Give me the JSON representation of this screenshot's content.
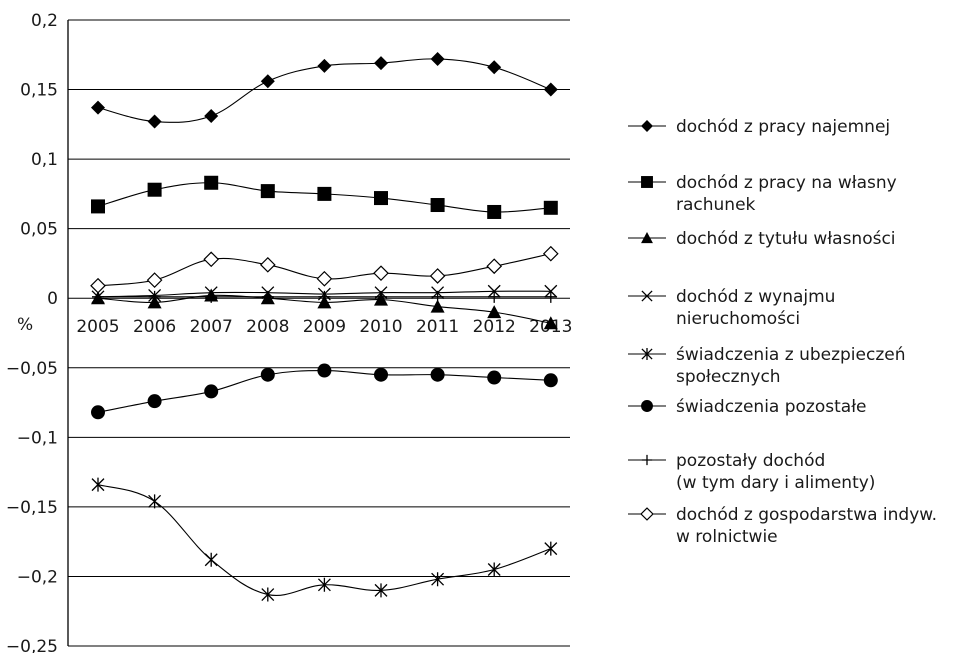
{
  "chart_data": {
    "type": "line",
    "ylabel": "%",
    "ylim": [
      -0.25,
      0.2
    ],
    "yticks": [
      "0,2",
      "0,15",
      "0,1",
      "0,05",
      "0",
      "−0,05",
      "−0,1",
      "−0,15",
      "−0,2",
      "−0,25"
    ],
    "ytick_values": [
      0.2,
      0.15,
      0.1,
      0.05,
      0,
      -0.05,
      -0.1,
      -0.15,
      -0.2,
      -0.25
    ],
    "categories": [
      "2005",
      "2006",
      "2007",
      "2008",
      "2009",
      "2010",
      "2011",
      "2012",
      "2013"
    ],
    "grid": "horizontal",
    "legend_position": "right",
    "series": [
      {
        "name": "dochód z pracy najemnej",
        "marker": "diamond-filled",
        "values": [
          0.137,
          0.127,
          0.131,
          0.156,
          0.167,
          0.169,
          0.172,
          0.166,
          0.15
        ]
      },
      {
        "name": "dochód z pracy na własny rachunek",
        "marker": "square-filled",
        "values": [
          0.066,
          0.078,
          0.083,
          0.077,
          0.075,
          0.072,
          0.067,
          0.062,
          0.065
        ]
      },
      {
        "name": "dochód z tytułu własności",
        "marker": "triangle-filled",
        "values": [
          0.0,
          -0.003,
          0.002,
          0.0,
          -0.003,
          -0.001,
          -0.006,
          -0.01,
          -0.018
        ]
      },
      {
        "name": "dochód z wynajmu nieruchomości",
        "marker": "x",
        "values": [
          0.001,
          0.002,
          0.004,
          0.004,
          0.003,
          0.004,
          0.004,
          0.005,
          0.005
        ]
      },
      {
        "name": "świadczenia z ubezpieczeń społecznych",
        "marker": "asterisk",
        "values": [
          -0.134,
          -0.146,
          -0.188,
          -0.213,
          -0.206,
          -0.21,
          -0.202,
          -0.195,
          -0.18
        ]
      },
      {
        "name": "świadczenia pozostałe",
        "marker": "circle-filled",
        "values": [
          -0.082,
          -0.074,
          -0.067,
          -0.055,
          -0.052,
          -0.055,
          -0.055,
          -0.057,
          -0.059
        ]
      },
      {
        "name": "pozostały dochód (w tym dary i alimenty)",
        "marker": "plus",
        "values": [
          0.001,
          0.001,
          0.001,
          0.001,
          0.001,
          0.001,
          0.001,
          0.001,
          0.001
        ]
      },
      {
        "name": "dochód z gospodarstwa indyw. w rolnictwie",
        "marker": "diamond-open",
        "values": [
          0.009,
          0.013,
          0.028,
          0.024,
          0.014,
          0.018,
          0.016,
          0.023,
          0.032
        ]
      }
    ],
    "legend_lines": [
      [
        "dochód z pracy najemnej"
      ],
      [
        "dochód z pracy na własny",
        "rachunek"
      ],
      [
        "dochód z tytułu własności"
      ],
      [
        "dochód z wynajmu",
        "nieruchomości"
      ],
      [
        "świadczenia z ubezpieczeń",
        "społecznych"
      ],
      [
        "świadczenia pozostałe"
      ],
      [
        "pozostały dochód",
        "(w tym dary i alimenty)"
      ],
      [
        "dochód z gospodarstwa indyw.",
        "w rolnictwie"
      ]
    ]
  }
}
